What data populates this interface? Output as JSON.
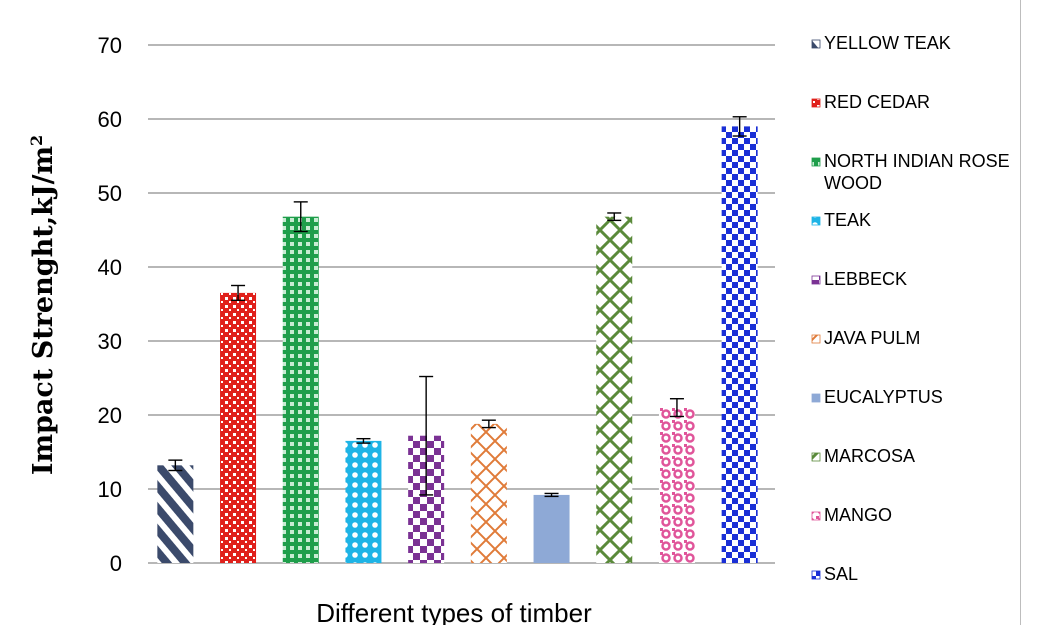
{
  "chart_data": {
    "type": "bar",
    "xlabel": "Different types of timber",
    "ylabel": "Impact Strenght,kJ/m",
    "ylabel_superscript": "2",
    "ylim": [
      0,
      70
    ],
    "yticks": [
      "0",
      "10",
      "20",
      "30",
      "40",
      "50",
      "60",
      "70"
    ],
    "grid": true,
    "legend_position": "right",
    "categories": [
      "YELLOW TEAK",
      "RED CEDAR",
      "NORTH INDIAN ROSE WOOD",
      "TEAK",
      "LEBBECK",
      "JAVA PULM",
      "EUCALYPTUS",
      "MARCOSA",
      "MANGO",
      "SAL"
    ],
    "legend_lines": [
      [
        "YELLOW TEAK"
      ],
      [
        "RED CEDAR"
      ],
      [
        "NORTH INDIAN ROSE",
        "WOOD"
      ],
      [
        "TEAK"
      ],
      [
        "LEBBECK"
      ],
      [
        "JAVA PULM"
      ],
      [
        "EUCALYPTUS"
      ],
      [
        "MARCOSA"
      ],
      [
        "MANGO"
      ],
      [
        "SAL"
      ]
    ],
    "values": [
      13.2,
      36.5,
      46.8,
      16.5,
      17.2,
      18.8,
      9.2,
      46.8,
      21.0,
      59.0
    ],
    "errors": [
      0.7,
      1.0,
      2.0,
      0.3,
      8.0,
      0.5,
      0.2,
      0.5,
      1.2,
      1.3
    ],
    "colors": [
      "#3b4a6b",
      "#e0201b",
      "#1f9e4b",
      "#1eb4e6",
      "#7b3294",
      "#e07b39",
      "#8ea9d6",
      "#5a8a3a",
      "#e0559a",
      "#1a2fd6"
    ],
    "patterns": [
      "diag",
      "dots",
      "grid",
      "circles",
      "check",
      "lattice",
      "solid",
      "zigzag",
      "weave",
      "checker"
    ]
  }
}
